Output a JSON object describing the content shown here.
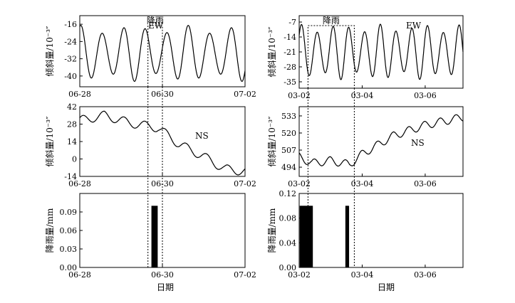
{
  "figure": {
    "xlabel_bottom": "日期",
    "rain_window_label": "降雨"
  },
  "chart_data": [
    {
      "id": "left-ew",
      "type": "line",
      "series_label": "EW",
      "ylabel": "倾斜量/10⁻³″",
      "x_ticks": [
        "06-28",
        "06-30",
        "07-02"
      ],
      "x_tick_pos": [
        0,
        2,
        4
      ],
      "xlim": [
        0,
        4
      ],
      "y_ticks": [
        -16,
        -24,
        -32,
        -40
      ],
      "ylim": [
        -45,
        -12
      ],
      "mean": -29.5,
      "amp": 13,
      "period_days": 0.52,
      "phase": 0.2,
      "rain_window": [
        1.65,
        2.0
      ]
    },
    {
      "id": "left-ns",
      "type": "line",
      "series_label": "NS",
      "ylabel": "倾斜量/10⁻³″",
      "x_ticks": [
        "06-28",
        "06-30",
        "07-02"
      ],
      "x_tick_pos": [
        0,
        2,
        4
      ],
      "xlim": [
        0,
        4
      ],
      "y_ticks": [
        42,
        28,
        14,
        0,
        -14
      ],
      "ylim": [
        -14,
        42
      ],
      "trend": [
        [
          0,
          31
        ],
        [
          0.6,
          35
        ],
        [
          1.2,
          29
        ],
        [
          1.9,
          25
        ],
        [
          2.4,
          12
        ],
        [
          3.0,
          2
        ],
        [
          3.5,
          -8
        ],
        [
          4.0,
          -10
        ]
      ],
      "amp": 3.5,
      "period_days": 0.5,
      "phase": 0.1
    },
    {
      "id": "left-rain",
      "type": "bar",
      "ylabel": "降雨量/mm",
      "x_ticks": [
        "06-28",
        "06-30",
        "07-02"
      ],
      "x_tick_pos": [
        0,
        2,
        4
      ],
      "xlim": [
        0,
        4
      ],
      "y_ticks": [
        0.0,
        0.03,
        0.06,
        0.09
      ],
      "y_tick_text": [
        "0.00",
        "0.03",
        "0.06",
        "0.09"
      ],
      "ylim": [
        0,
        0.12
      ],
      "bars": [
        [
          1.76,
          0.1
        ],
        [
          1.81,
          0.1
        ],
        [
          1.86,
          0.1
        ]
      ]
    },
    {
      "id": "right-ew",
      "type": "line",
      "series_label": "EW",
      "ylabel": "倾斜量/10⁻³″",
      "x_ticks": [
        "03-02",
        "03-04",
        "03-06"
      ],
      "x_tick_pos": [
        0,
        2,
        4
      ],
      "xlim": [
        0,
        5.2
      ],
      "y_ticks": [
        -7,
        -14,
        -21,
        -28,
        -35
      ],
      "ylim": [
        -38,
        -4
      ],
      "mean": -21,
      "amp": 13,
      "period_days": 0.5,
      "phase": 0.1,
      "rain_window": [
        0.28,
        1.75
      ]
    },
    {
      "id": "right-ns",
      "type": "line",
      "series_label": "NS",
      "ylabel": "倾斜量/10⁻³″",
      "x_ticks": [
        "03-02",
        "03-04",
        "03-06"
      ],
      "x_tick_pos": [
        0,
        2,
        4
      ],
      "xlim": [
        0,
        5.2
      ],
      "y_ticks": [
        533,
        520,
        507,
        494
      ],
      "ylim": [
        487,
        540
      ],
      "trend": [
        [
          0,
          502
        ],
        [
          0.4,
          497
        ],
        [
          1.0,
          499
        ],
        [
          1.6,
          496
        ],
        [
          2.0,
          504
        ],
        [
          3.0,
          518
        ],
        [
          4.0,
          526
        ],
        [
          5.2,
          532
        ]
      ],
      "amp": 3,
      "period_days": 0.5,
      "phase": 0.3
    },
    {
      "id": "right-rain",
      "type": "bar",
      "ylabel": "降雨量/mm",
      "x_ticks": [
        "03-02",
        "03-04",
        "03-06"
      ],
      "x_tick_pos": [
        0,
        2,
        4
      ],
      "xlim": [
        0,
        5.2
      ],
      "y_ticks": [
        0.0,
        0.04,
        0.08,
        0.12
      ],
      "y_tick_text": [
        "0.00",
        "0.04",
        "0.08",
        "0.12"
      ],
      "ylim": [
        0,
        0.12
      ],
      "bars": [
        [
          0.05,
          0.1
        ],
        [
          0.1,
          0.1
        ],
        [
          0.15,
          0.1
        ],
        [
          0.2,
          0.1
        ],
        [
          0.25,
          0.1
        ],
        [
          0.3,
          0.1
        ],
        [
          0.35,
          0.1
        ],
        [
          0.4,
          0.1
        ],
        [
          1.5,
          0.1
        ],
        [
          1.55,
          0.1
        ]
      ]
    }
  ]
}
